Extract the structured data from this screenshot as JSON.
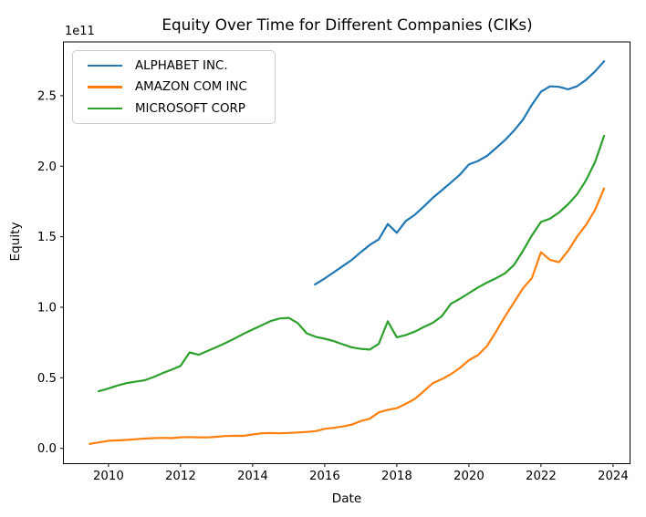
{
  "chart_data": {
    "type": "line",
    "title": "Equity Over Time for Different Companies (CIKs)",
    "xlabel": "Date",
    "ylabel": "Equity",
    "y_offset_label": "1e11",
    "y_scale_factor": "1e11",
    "grid": false,
    "legend_position": "upper left",
    "xlim": [
      2008.75,
      2024.47
    ],
    "ylim": [
      -0.109,
      2.881
    ],
    "xticks": [
      2010,
      2012,
      2014,
      2016,
      2018,
      2020,
      2022,
      2024
    ],
    "xtick_labels": [
      "2010",
      "2012",
      "2014",
      "2016",
      "2018",
      "2020",
      "2022",
      "2024"
    ],
    "yticks": [
      0.0,
      0.5,
      1.0,
      1.5,
      2.0,
      2.5
    ],
    "ytick_labels": [
      "0.0",
      "0.5",
      "1.0",
      "1.5",
      "2.0",
      "2.5"
    ],
    "series": [
      {
        "name": "ALPHABET INC.",
        "color": "#1f77b4",
        "points": [
          [
            2015.73,
            1.162
          ],
          [
            2016.0,
            1.204
          ],
          [
            2016.25,
            1.248
          ],
          [
            2016.5,
            1.292
          ],
          [
            2016.75,
            1.335
          ],
          [
            2017.0,
            1.39
          ],
          [
            2017.25,
            1.442
          ],
          [
            2017.5,
            1.482
          ],
          [
            2017.75,
            1.59
          ],
          [
            2018.0,
            1.528
          ],
          [
            2018.25,
            1.612
          ],
          [
            2018.5,
            1.656
          ],
          [
            2018.75,
            1.715
          ],
          [
            2019.0,
            1.776
          ],
          [
            2019.25,
            1.83
          ],
          [
            2019.5,
            1.884
          ],
          [
            2019.75,
            1.94
          ],
          [
            2020.0,
            2.012
          ],
          [
            2020.25,
            2.037
          ],
          [
            2020.5,
            2.073
          ],
          [
            2020.75,
            2.128
          ],
          [
            2021.0,
            2.185
          ],
          [
            2021.25,
            2.252
          ],
          [
            2021.5,
            2.33
          ],
          [
            2021.75,
            2.437
          ],
          [
            2022.0,
            2.528
          ],
          [
            2022.25,
            2.566
          ],
          [
            2022.5,
            2.563
          ],
          [
            2022.75,
            2.545
          ],
          [
            2023.0,
            2.567
          ],
          [
            2023.25,
            2.612
          ],
          [
            2023.5,
            2.672
          ],
          [
            2023.75,
            2.744
          ]
        ]
      },
      {
        "name": "AMAZON COM INC",
        "color": "#ff7f0e",
        "points": [
          [
            2009.48,
            0.031
          ],
          [
            2009.75,
            0.042
          ],
          [
            2010.0,
            0.053
          ],
          [
            2010.25,
            0.056
          ],
          [
            2010.5,
            0.059
          ],
          [
            2010.75,
            0.064
          ],
          [
            2011.0,
            0.069
          ],
          [
            2011.25,
            0.072
          ],
          [
            2011.5,
            0.074
          ],
          [
            2011.75,
            0.072
          ],
          [
            2012.0,
            0.078
          ],
          [
            2012.25,
            0.08
          ],
          [
            2012.5,
            0.078
          ],
          [
            2012.75,
            0.077
          ],
          [
            2013.0,
            0.082
          ],
          [
            2013.25,
            0.087
          ],
          [
            2013.5,
            0.089
          ],
          [
            2013.75,
            0.088
          ],
          [
            2014.0,
            0.098
          ],
          [
            2014.25,
            0.106
          ],
          [
            2014.5,
            0.108
          ],
          [
            2014.75,
            0.106
          ],
          [
            2015.0,
            0.109
          ],
          [
            2015.25,
            0.112
          ],
          [
            2015.5,
            0.116
          ],
          [
            2015.75,
            0.122
          ],
          [
            2016.0,
            0.138
          ],
          [
            2016.25,
            0.145
          ],
          [
            2016.5,
            0.155
          ],
          [
            2016.75,
            0.168
          ],
          [
            2017.0,
            0.193
          ],
          [
            2017.25,
            0.21
          ],
          [
            2017.5,
            0.255
          ],
          [
            2017.75,
            0.272
          ],
          [
            2018.0,
            0.285
          ],
          [
            2018.25,
            0.315
          ],
          [
            2018.5,
            0.35
          ],
          [
            2018.75,
            0.405
          ],
          [
            2019.0,
            0.462
          ],
          [
            2019.25,
            0.49
          ],
          [
            2019.5,
            0.525
          ],
          [
            2019.75,
            0.57
          ],
          [
            2020.0,
            0.625
          ],
          [
            2020.25,
            0.66
          ],
          [
            2020.5,
            0.725
          ],
          [
            2020.75,
            0.825
          ],
          [
            2021.0,
            0.934
          ],
          [
            2021.25,
            1.034
          ],
          [
            2021.5,
            1.135
          ],
          [
            2021.75,
            1.207
          ],
          [
            2022.0,
            1.39
          ],
          [
            2022.25,
            1.335
          ],
          [
            2022.5,
            1.32
          ],
          [
            2022.75,
            1.4
          ],
          [
            2023.0,
            1.5
          ],
          [
            2023.25,
            1.584
          ],
          [
            2023.5,
            1.69
          ],
          [
            2023.75,
            1.843
          ]
        ]
      },
      {
        "name": "MICROSOFT CORP",
        "color": "#2ca02c",
        "points": [
          [
            2009.73,
            0.404
          ],
          [
            2010.0,
            0.424
          ],
          [
            2010.25,
            0.445
          ],
          [
            2010.5,
            0.462
          ],
          [
            2010.75,
            0.472
          ],
          [
            2011.0,
            0.482
          ],
          [
            2011.25,
            0.505
          ],
          [
            2011.5,
            0.533
          ],
          [
            2011.75,
            0.557
          ],
          [
            2012.0,
            0.585
          ],
          [
            2012.25,
            0.68
          ],
          [
            2012.5,
            0.663
          ],
          [
            2012.75,
            0.69
          ],
          [
            2013.0,
            0.718
          ],
          [
            2013.25,
            0.747
          ],
          [
            2013.5,
            0.778
          ],
          [
            2013.75,
            0.812
          ],
          [
            2014.0,
            0.842
          ],
          [
            2014.25,
            0.872
          ],
          [
            2014.5,
            0.902
          ],
          [
            2014.75,
            0.92
          ],
          [
            2015.0,
            0.925
          ],
          [
            2015.25,
            0.888
          ],
          [
            2015.5,
            0.815
          ],
          [
            2015.75,
            0.79
          ],
          [
            2016.0,
            0.777
          ],
          [
            2016.25,
            0.76
          ],
          [
            2016.5,
            0.737
          ],
          [
            2016.75,
            0.716
          ],
          [
            2017.0,
            0.705
          ],
          [
            2017.25,
            0.7
          ],
          [
            2017.5,
            0.742
          ],
          [
            2017.75,
            0.9
          ],
          [
            2018.0,
            0.787
          ],
          [
            2018.25,
            0.803
          ],
          [
            2018.5,
            0.827
          ],
          [
            2018.75,
            0.86
          ],
          [
            2019.0,
            0.89
          ],
          [
            2019.25,
            0.937
          ],
          [
            2019.5,
            1.025
          ],
          [
            2019.75,
            1.06
          ],
          [
            2020.0,
            1.1
          ],
          [
            2020.25,
            1.14
          ],
          [
            2020.5,
            1.175
          ],
          [
            2020.75,
            1.205
          ],
          [
            2021.0,
            1.24
          ],
          [
            2021.25,
            1.3
          ],
          [
            2021.5,
            1.4
          ],
          [
            2021.75,
            1.51
          ],
          [
            2022.0,
            1.605
          ],
          [
            2022.25,
            1.628
          ],
          [
            2022.5,
            1.672
          ],
          [
            2022.75,
            1.73
          ],
          [
            2023.0,
            1.8
          ],
          [
            2023.25,
            1.9
          ],
          [
            2023.5,
            2.03
          ],
          [
            2023.75,
            2.215
          ]
        ]
      }
    ]
  }
}
